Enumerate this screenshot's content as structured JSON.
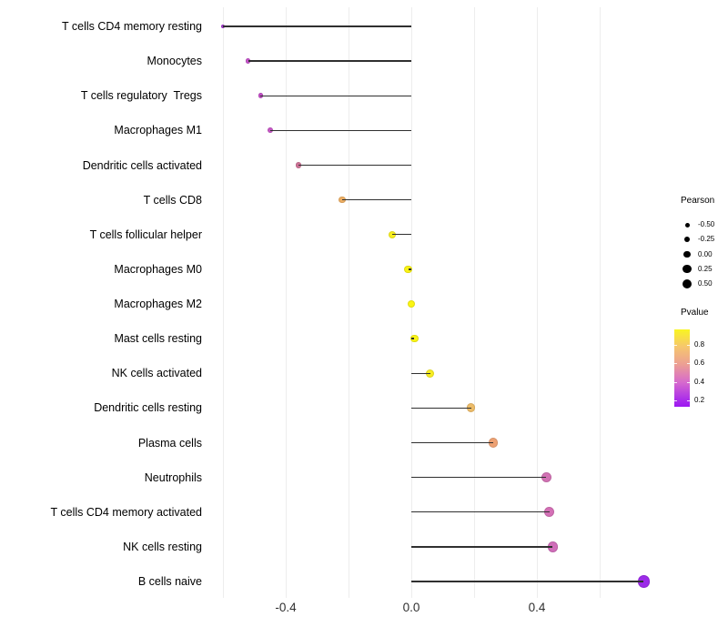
{
  "chart_data": {
    "type": "lollipop",
    "title": "",
    "xlabel": "",
    "ylabel": "",
    "x_axis": {
      "tick_labels": [
        "-0.4",
        "0.0",
        "0.4"
      ],
      "tick_values": [
        -0.4,
        0.0,
        0.4
      ],
      "gridline_values": [
        -0.6,
        -0.4,
        -0.2,
        0.0,
        0.2,
        0.4,
        0.6
      ],
      "xlim": [
        -0.62,
        0.77
      ]
    },
    "grid": "vertical-only",
    "legend_position": "right",
    "points": [
      {
        "label": "T cells CD4 memory resting",
        "pearson": -0.6,
        "pvalue": 0.3,
        "color": "#A73BD2"
      },
      {
        "label": "Monocytes",
        "pearson": -0.52,
        "pvalue": 0.38,
        "color": "#C353C8"
      },
      {
        "label": "T cells regulatory  Tregs",
        "pearson": -0.48,
        "pvalue": 0.38,
        "color": "#C24FC6"
      },
      {
        "label": "Macrophages M1",
        "pearson": -0.45,
        "pvalue": 0.39,
        "color": "#C556C4"
      },
      {
        "label": "Dendritic cells activated",
        "pearson": -0.36,
        "pvalue": 0.55,
        "color": "#CD7396"
      },
      {
        "label": "T cells CD8",
        "pearson": -0.22,
        "pvalue": 0.8,
        "color": "#EDAE63"
      },
      {
        "label": "T cells follicular helper",
        "pearson": -0.06,
        "pvalue": 0.93,
        "color": "#F8EF1E"
      },
      {
        "label": "Macrophages M0",
        "pearson": -0.01,
        "pvalue": 0.96,
        "color": "#FAF315"
      },
      {
        "label": "Macrophages M2",
        "pearson": 0.0,
        "pvalue": 0.97,
        "color": "#FBF513"
      },
      {
        "label": "Mast cells resting",
        "pearson": 0.01,
        "pvalue": 0.96,
        "color": "#FAF415"
      },
      {
        "label": "NK cells activated",
        "pearson": 0.06,
        "pvalue": 0.92,
        "color": "#F7ED22"
      },
      {
        "label": "Dendritic cells resting",
        "pearson": 0.19,
        "pvalue": 0.8,
        "color": "#EDBC68"
      },
      {
        "label": "Plasma cells",
        "pearson": 0.26,
        "pvalue": 0.7,
        "color": "#EDA173"
      },
      {
        "label": "Neutrophils",
        "pearson": 0.43,
        "pvalue": 0.45,
        "color": "#D272B4"
      },
      {
        "label": "T cells CD4 memory activated",
        "pearson": 0.44,
        "pvalue": 0.45,
        "color": "#D470B6"
      },
      {
        "label": "NK cells resting",
        "pearson": 0.45,
        "pvalue": 0.44,
        "color": "#D06DB9"
      },
      {
        "label": "B cells naive",
        "pearson": 0.74,
        "pvalue": 0.13,
        "color": "#9C2BE8"
      }
    ],
    "legend_pearson": {
      "title": "Pearson",
      "entries": [
        {
          "label": "-0.50",
          "value": -0.5,
          "radius": 2.5
        },
        {
          "label": "-0.25",
          "value": -0.25,
          "radius": 3.2
        },
        {
          "label": "0.00",
          "value": 0.0,
          "radius": 3.9
        },
        {
          "label": "0.25",
          "value": 0.25,
          "radius": 4.6
        },
        {
          "label": "0.50",
          "value": 0.5,
          "radius": 5.2
        }
      ]
    },
    "legend_pvalue": {
      "title": "Pvalue",
      "tick_labels": [
        "0.8",
        "0.6",
        "0.4",
        "0.2"
      ],
      "gradient_stops": [
        {
          "pos": 0,
          "color": "#F9F521"
        },
        {
          "pos": 22,
          "color": "#F6C76C"
        },
        {
          "pos": 45,
          "color": "#EC9F93"
        },
        {
          "pos": 68,
          "color": "#D76BCC"
        },
        {
          "pos": 90,
          "color": "#AC30E9"
        },
        {
          "pos": 100,
          "color": "#9C17F1"
        }
      ]
    },
    "colors": {
      "stem": "#303030",
      "gridline": "#ededed",
      "background": "#ffffff",
      "axis_text": "#303030",
      "label_text": "#000000"
    }
  }
}
